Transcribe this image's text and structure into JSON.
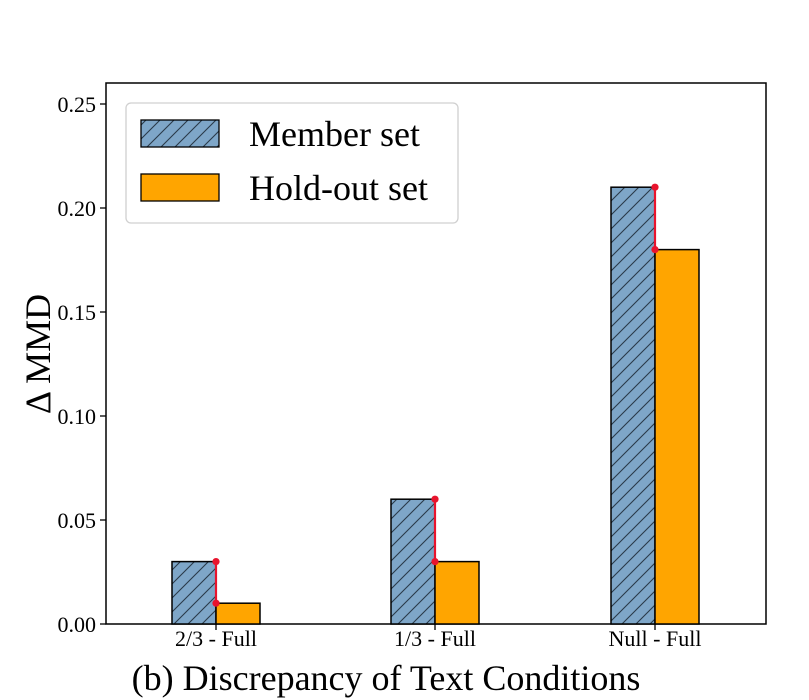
{
  "chart_data": {
    "type": "bar",
    "title": "",
    "xlabel": "(b) Discrepancy of Text Conditions",
    "ylabel": "Δ MMD",
    "categories": [
      "2/3 - Full",
      "1/3 - Full",
      "Null - Full"
    ],
    "series": [
      {
        "name": "Member set",
        "values": [
          0.03,
          0.06,
          0.21
        ],
        "color": "#7EA6C8",
        "hatch": "diagonal"
      },
      {
        "name": "Hold-out set",
        "values": [
          0.01,
          0.03,
          0.18
        ],
        "color": "#FFA500",
        "hatch": "none"
      }
    ],
    "ylim": [
      0,
      0.26
    ],
    "yticks": [
      "0.00",
      "0.05",
      "0.10",
      "0.15",
      "0.20",
      "0.25"
    ],
    "ytick_values": [
      0,
      0.05,
      0.1,
      0.15,
      0.2,
      0.25
    ],
    "gap_marker_color": "#E8142D",
    "grid": false,
    "legend_position": "upper-left"
  }
}
